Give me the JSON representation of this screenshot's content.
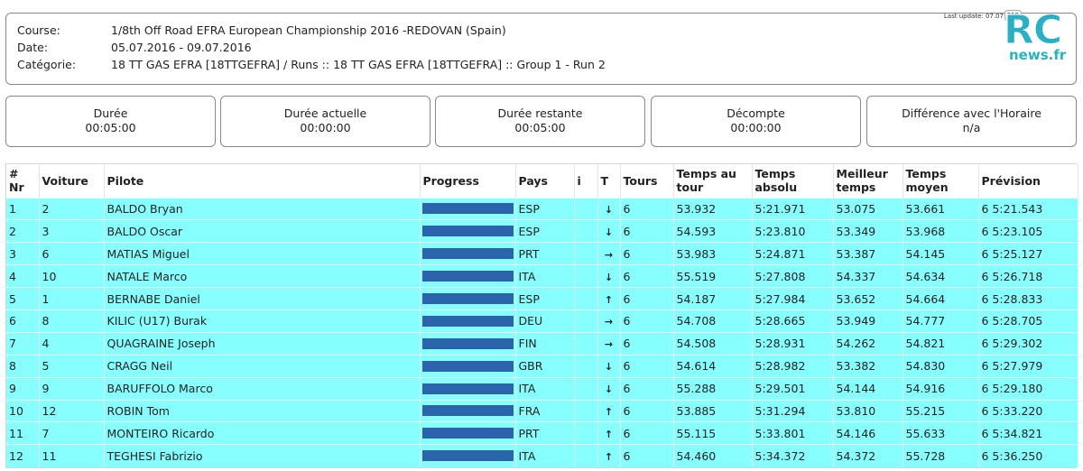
{
  "header": {
    "course_label": "Course:",
    "course_value": "1/8th Off Road EFRA European Championship 2016 -REDOVAN (Spain)",
    "date_label": "Date:",
    "date_value": "05.07.2016 - 09.07.2016",
    "category_label": "Catégorie:",
    "category_value": "18 TT GAS EFRA [18TTGEFRA] / Runs :: 18 TT GAS EFRA [18TTGEFRA] :: Group 1 - Run 2",
    "last_update": "Last update: 07.07",
    "counter": "319"
  },
  "logo": {
    "text_rc": "RC",
    "text_news": "news.fr"
  },
  "stats": [
    {
      "label": "Durée",
      "value": "00:05:00"
    },
    {
      "label": "Durée actuelle",
      "value": "00:00:00"
    },
    {
      "label": "Durée restante",
      "value": "00:05:00"
    },
    {
      "label": "Décompte",
      "value": "00:00:00"
    },
    {
      "label": "Différence avec l'Horaire",
      "value": "n/a"
    }
  ],
  "table": {
    "columns": {
      "nr": "# Nr",
      "voiture": "Voiture",
      "pilote": "Pilote",
      "progress": "Progress",
      "pays": "Pays",
      "info": "i",
      "trend": "T",
      "tours": "Tours",
      "temps_tour_1": "Temps au",
      "temps_tour_2": "tour",
      "temps_abs_1": "Temps",
      "temps_abs_2": "absolu",
      "meilleur_1": "Meilleur",
      "meilleur_2": "temps",
      "moyen_1": "Temps",
      "moyen_2": "moyen",
      "prevision": "Prévision"
    },
    "rows": [
      {
        "nr": "1",
        "voiture": "2",
        "pilote": "BALDO Bryan",
        "progress": 1.0,
        "pays": "ESP",
        "trend": "↓",
        "tours": "6",
        "temps_tour": "53.932",
        "temps_absolu": "5:21.971",
        "meilleur": "53.075",
        "moyen": "53.661",
        "prevision": "6 5:21.543"
      },
      {
        "nr": "2",
        "voiture": "3",
        "pilote": "BALDO Oscar",
        "progress": 1.0,
        "pays": "ESP",
        "trend": "↓",
        "tours": "6",
        "temps_tour": "54.593",
        "temps_absolu": "5:23.810",
        "meilleur": "53.349",
        "moyen": "53.968",
        "prevision": "6 5:23.105"
      },
      {
        "nr": "3",
        "voiture": "6",
        "pilote": "MATIAS Miguel",
        "progress": 1.0,
        "pays": "PRT",
        "trend": "→",
        "tours": "6",
        "temps_tour": "53.983",
        "temps_absolu": "5:24.871",
        "meilleur": "53.387",
        "moyen": "54.145",
        "prevision": "6 5:25.127"
      },
      {
        "nr": "4",
        "voiture": "10",
        "pilote": "NATALE Marco",
        "progress": 1.0,
        "pays": "ITA",
        "trend": "↓",
        "tours": "6",
        "temps_tour": "55.519",
        "temps_absolu": "5:27.808",
        "meilleur": "54.337",
        "moyen": "54.634",
        "prevision": "6 5:26.718"
      },
      {
        "nr": "5",
        "voiture": "1",
        "pilote": "BERNABE Daniel",
        "progress": 1.0,
        "pays": "ESP",
        "trend": "↑",
        "tours": "6",
        "temps_tour": "54.187",
        "temps_absolu": "5:27.984",
        "meilleur": "53.652",
        "moyen": "54.664",
        "prevision": "6 5:28.833"
      },
      {
        "nr": "6",
        "voiture": "8",
        "pilote": "KILIC (U17) Burak",
        "progress": 1.0,
        "pays": "DEU",
        "trend": "→",
        "tours": "6",
        "temps_tour": "54.708",
        "temps_absolu": "5:28.665",
        "meilleur": "53.949",
        "moyen": "54.777",
        "prevision": "6 5:28.705"
      },
      {
        "nr": "7",
        "voiture": "4",
        "pilote": "QUAGRAINE Joseph",
        "progress": 1.0,
        "pays": "FIN",
        "trend": "→",
        "tours": "6",
        "temps_tour": "54.508",
        "temps_absolu": "5:28.931",
        "meilleur": "54.262",
        "moyen": "54.821",
        "prevision": "6 5:29.302"
      },
      {
        "nr": "8",
        "voiture": "5",
        "pilote": "CRAGG Neil",
        "progress": 1.0,
        "pays": "GBR",
        "trend": "↓",
        "tours": "6",
        "temps_tour": "54.614",
        "temps_absolu": "5:28.982",
        "meilleur": "53.382",
        "moyen": "54.830",
        "prevision": "6 5:27.979"
      },
      {
        "nr": "9",
        "voiture": "9",
        "pilote": "BARUFFOLO Marco",
        "progress": 1.0,
        "pays": "ITA",
        "trend": "↓",
        "tours": "6",
        "temps_tour": "55.288",
        "temps_absolu": "5:29.501",
        "meilleur": "54.144",
        "moyen": "54.916",
        "prevision": "6 5:29.180"
      },
      {
        "nr": "10",
        "voiture": "12",
        "pilote": "ROBIN Tom",
        "progress": 1.0,
        "pays": "FRA",
        "trend": "↑",
        "tours": "6",
        "temps_tour": "53.885",
        "temps_absolu": "5:31.294",
        "meilleur": "53.810",
        "moyen": "55.215",
        "prevision": "6 5:33.220"
      },
      {
        "nr": "11",
        "voiture": "7",
        "pilote": "MONTEIRO Ricardo",
        "progress": 1.0,
        "pays": "PRT",
        "trend": "↑",
        "tours": "6",
        "temps_tour": "55.115",
        "temps_absolu": "5:33.801",
        "meilleur": "54.146",
        "moyen": "55.633",
        "prevision": "6 5:34.821"
      },
      {
        "nr": "12",
        "voiture": "11",
        "pilote": "TEGHESI Fabrizio",
        "progress": 1.0,
        "pays": "ITA",
        "trend": "↑",
        "tours": "6",
        "temps_tour": "54.460",
        "temps_absolu": "5:34.372",
        "meilleur": "54.372",
        "moyen": "55.728",
        "prevision": "6 5:36.250"
      }
    ]
  },
  "colors": {
    "row_bg": "#87ffff",
    "progress_bar": "#2b63ad",
    "logo": "#2ab0c4"
  }
}
